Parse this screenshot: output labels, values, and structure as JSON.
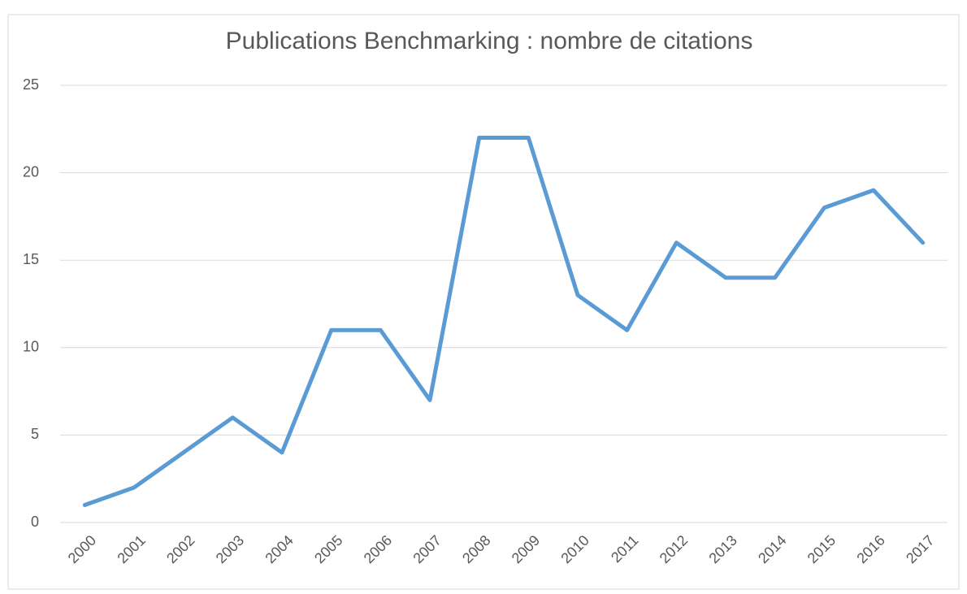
{
  "chart_data": {
    "type": "line",
    "title": "Publications Benchmarking : nombre de citations",
    "categories": [
      "2000",
      "2001",
      "2002",
      "2003",
      "2004",
      "2005",
      "2006",
      "2007",
      "2008",
      "2009",
      "2010",
      "2011",
      "2012",
      "2013",
      "2014",
      "2015",
      "2016",
      "2017"
    ],
    "series": [
      {
        "color": "#5b9bd5",
        "values": [
          1,
          2,
          4,
          6,
          4,
          11,
          11,
          7,
          22,
          22,
          13,
          11,
          16,
          14,
          14,
          18,
          19,
          16
        ]
      }
    ],
    "ylim": [
      0,
      25
    ],
    "yticks": [
      0,
      5,
      10,
      15,
      20,
      25
    ],
    "grid": true
  }
}
